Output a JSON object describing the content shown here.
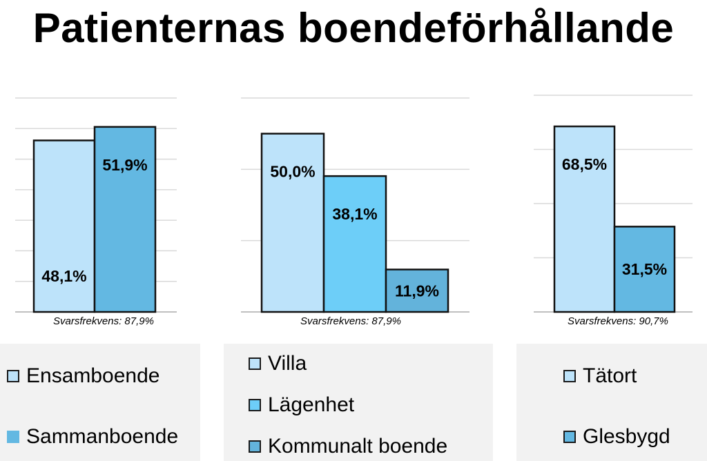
{
  "title": "Patienternas boendeförhållande",
  "chart_data": [
    {
      "type": "bar",
      "categories": [
        "Ensamboende",
        "Sammanboende"
      ],
      "values": [
        48.1,
        51.9
      ],
      "labels": [
        "48,1%",
        "51,9%"
      ],
      "colors": [
        "#bde3fa",
        "#63b8e2"
      ],
      "ylim": [
        0,
        60
      ],
      "grid": true,
      "note": "Svarsfrekvens: 87,9%"
    },
    {
      "type": "bar",
      "categories": [
        "Villa",
        "Lägenhet",
        "Kommunalt boende"
      ],
      "values": [
        50.0,
        38.1,
        11.9
      ],
      "labels": [
        "50,0%",
        "38,1%",
        "11,9%"
      ],
      "colors": [
        "#bde3fa",
        "#6dcef8",
        "#63b3db"
      ],
      "ylim": [
        0,
        60
      ],
      "grid": true,
      "note": "Svarsfrekvens: 87,9%"
    },
    {
      "type": "bar",
      "categories": [
        "Tätort",
        "Glesbygd"
      ],
      "values": [
        68.5,
        31.5
      ],
      "labels": [
        "68,5%",
        "31,5%"
      ],
      "colors": [
        "#bde3fa",
        "#63b8e2"
      ],
      "ylim": [
        0,
        80
      ],
      "grid": true,
      "note": "Svarsfrekvens: 90,7%"
    }
  ],
  "legends": [
    {
      "items": [
        {
          "label": "Ensamboende",
          "color": "#bde3fa"
        },
        {
          "label": "Sammanboende",
          "color": "#63b8e2"
        }
      ]
    },
    {
      "items": [
        {
          "label": "Villa",
          "color": "#bde3fa"
        },
        {
          "label": "Lägenhet",
          "color": "#6dcef8"
        },
        {
          "label": "Kommunalt boende",
          "color": "#63b3db"
        }
      ]
    },
    {
      "items": [
        {
          "label": "Tätort",
          "color": "#bde3fa"
        },
        {
          "label": "Glesbygd",
          "color": "#63b8e2"
        }
      ]
    }
  ]
}
